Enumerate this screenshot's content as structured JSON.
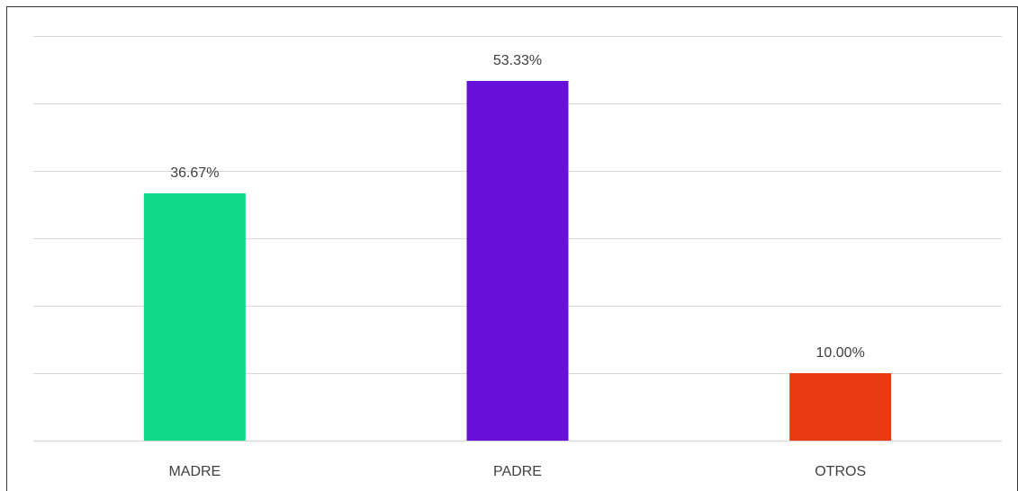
{
  "chart_data": {
    "type": "bar",
    "categories": [
      "MADRE",
      "PADRE",
      "OTROS"
    ],
    "values": [
      36.67,
      53.33,
      10.0
    ],
    "data_labels": [
      "36.67%",
      "53.33%",
      "10.00%"
    ],
    "colors": [
      "#10DA8A",
      "#6610DA",
      "#E93B0F"
    ],
    "ylim": [
      0,
      60
    ],
    "grid": true,
    "gridline_color": "#D9D9D9",
    "legend": "none"
  }
}
